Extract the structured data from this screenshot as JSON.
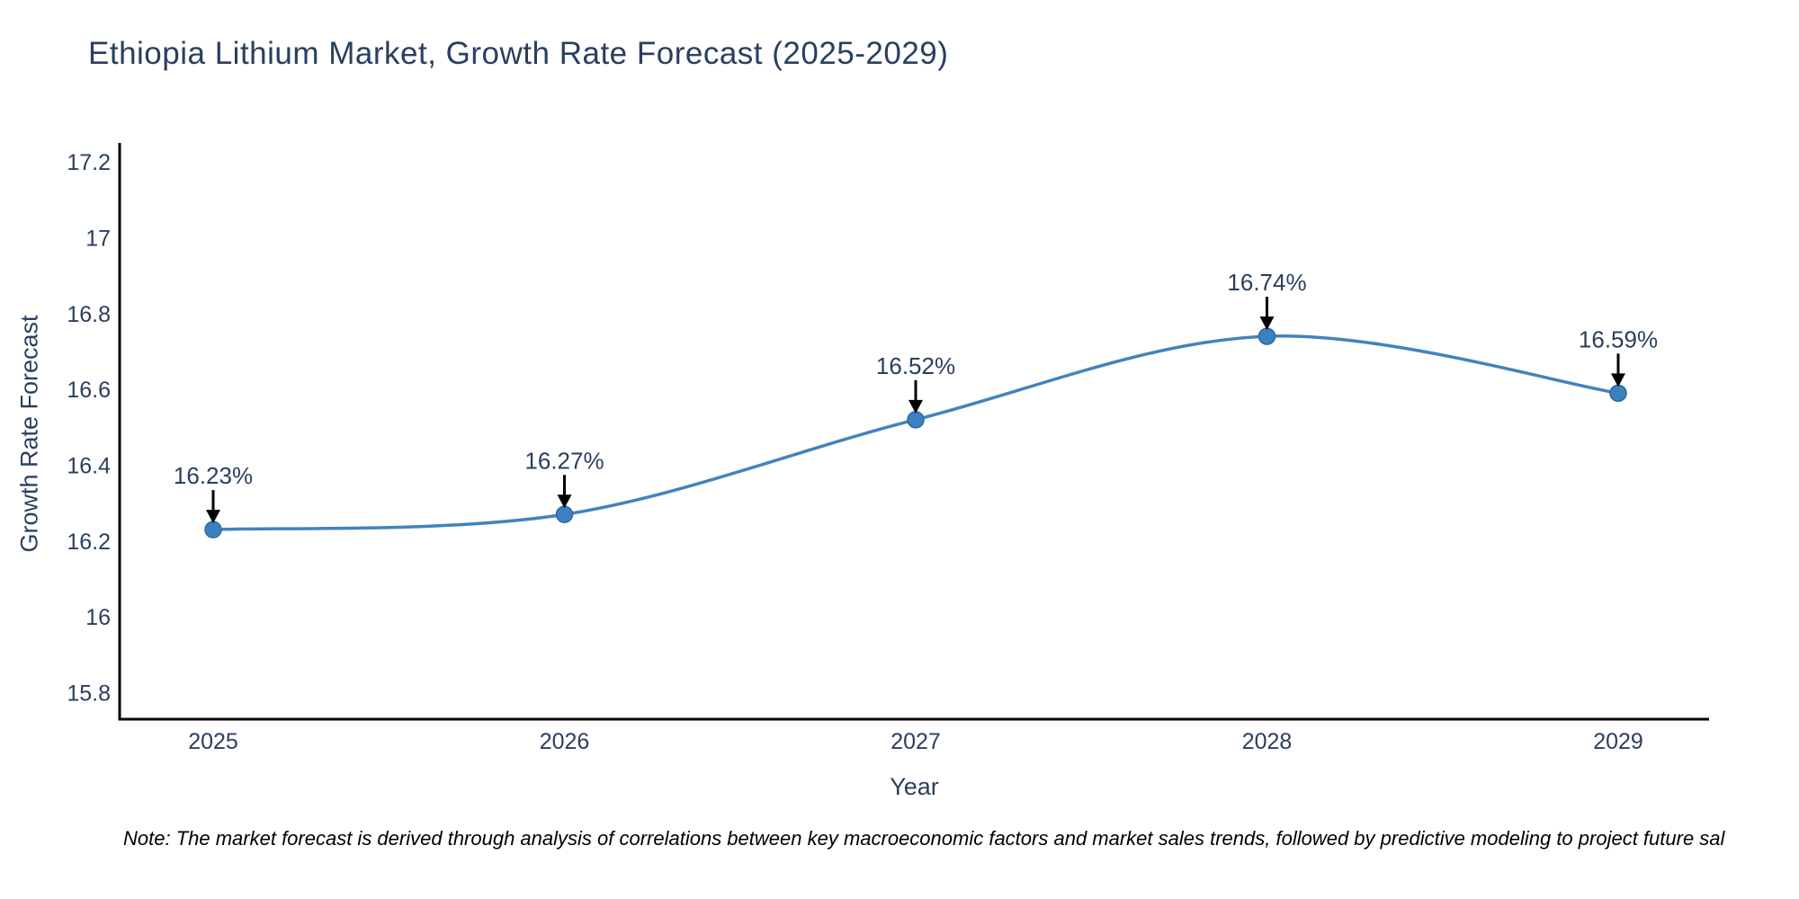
{
  "note": "Note: The market forecast is derived through analysis of correlations between key macroeconomic factors and market sales trends, followed by predictive modeling to project future sal",
  "chart_data": {
    "type": "line",
    "title": "Ethiopia Lithium Market, Growth Rate Forecast (2025-2029)",
    "xlabel": "Year",
    "ylabel": "Growth Rate Forecast",
    "x": [
      2025,
      2026,
      2027,
      2028,
      2029
    ],
    "values": [
      16.23,
      16.27,
      16.52,
      16.74,
      16.59
    ],
    "point_labels": [
      "16.23%",
      "16.27%",
      "16.52%",
      "16.74%",
      "16.59%"
    ],
    "x_tick_labels": [
      "2025",
      "2026",
      "2027",
      "2028",
      "2029"
    ],
    "y_ticks": [
      15.8,
      16,
      16.2,
      16.4,
      16.6,
      16.8,
      17,
      17.2
    ],
    "y_tick_labels": [
      "15.8",
      "16",
      "16.2",
      "16.4",
      "16.6",
      "16.8",
      "17",
      "17.2"
    ],
    "ylim": [
      15.73,
      17.25
    ],
    "grid": false,
    "legend": "none",
    "line_shape": "spline",
    "colors": {
      "line": "#4283bc",
      "marker": "#3d80c0",
      "marker_edge": "#2e6aa0",
      "text": "#2a3f5f",
      "axis": "#000000",
      "annotation_arrow": "#000000",
      "note_text": "#000000",
      "background": "#ffffff"
    }
  }
}
